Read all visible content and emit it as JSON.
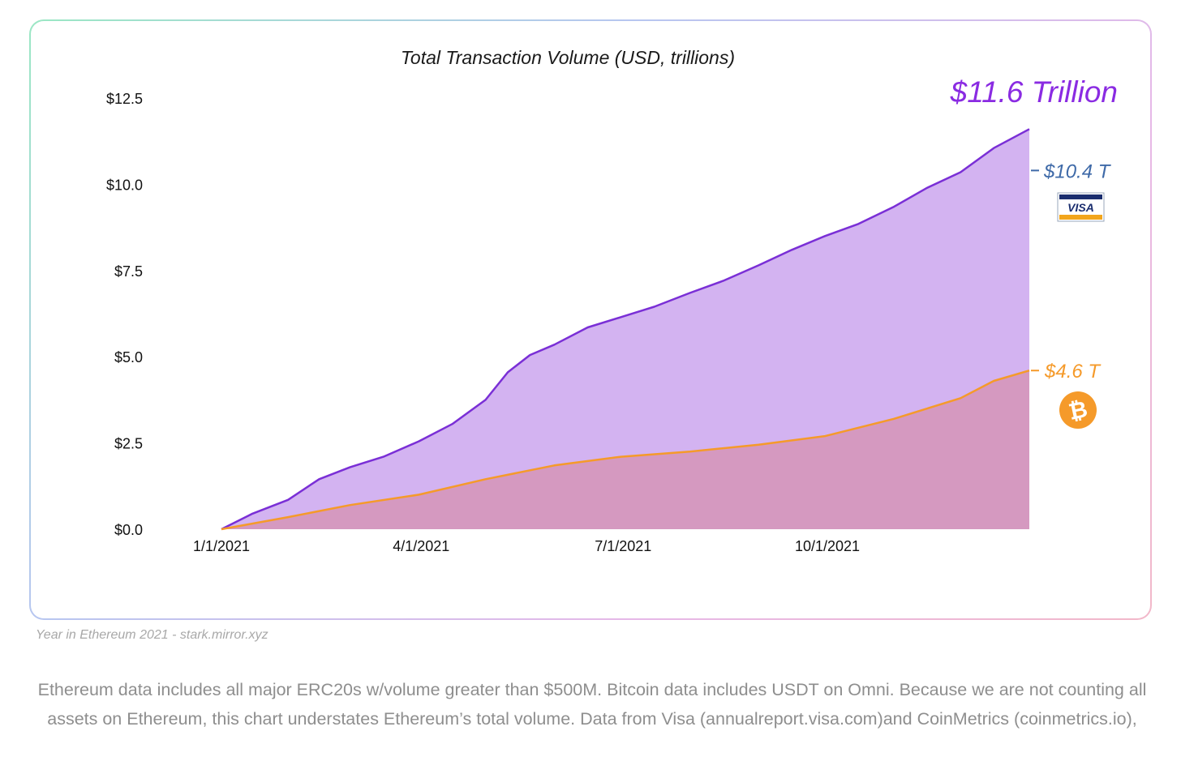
{
  "chart_data": {
    "type": "area",
    "title": "Total Transaction Volume (USD, trillions)",
    "xlabel": "",
    "ylabel": "",
    "ylim": [
      0,
      12.5
    ],
    "xlim": [
      "2021-01-01",
      "2021-12-31"
    ],
    "yticks": [
      "$0.0",
      "$2.5",
      "$5.0",
      "$7.5",
      "$10.0",
      "$12.5"
    ],
    "ytick_values": [
      0,
      2.5,
      5.0,
      7.5,
      10.0,
      12.5
    ],
    "xticks": [
      "1/1/2021",
      "4/1/2021",
      "7/1/2021",
      "10/1/2021"
    ],
    "xtick_dates": [
      "2021-01-01",
      "2021-04-01",
      "2021-07-01",
      "2021-10-01"
    ],
    "grid": false,
    "series": [
      {
        "key": "eth",
        "color": "#7a2fd6",
        "fill": "#d3b3f1",
        "x": [
          "2021-01-01",
          "2021-01-15",
          "2021-01-31",
          "2021-02-14",
          "2021-02-28",
          "2021-03-15",
          "2021-03-31",
          "2021-04-15",
          "2021-04-30",
          "2021-05-10",
          "2021-05-20",
          "2021-05-31",
          "2021-06-15",
          "2021-06-30",
          "2021-07-15",
          "2021-07-31",
          "2021-08-15",
          "2021-08-31",
          "2021-09-15",
          "2021-09-30",
          "2021-10-15",
          "2021-10-31",
          "2021-11-15",
          "2021-11-30",
          "2021-12-15",
          "2021-12-31"
        ],
        "values": [
          0.0,
          0.45,
          0.85,
          1.45,
          1.8,
          2.1,
          2.55,
          3.05,
          3.75,
          4.55,
          5.05,
          5.35,
          5.85,
          6.15,
          6.45,
          6.85,
          7.2,
          7.65,
          8.1,
          8.5,
          8.85,
          9.35,
          9.9,
          10.35,
          11.05,
          11.6
        ]
      },
      {
        "key": "btc",
        "color": "#f59a2a",
        "fill": "#d599c0",
        "x": [
          "2021-01-01",
          "2021-01-31",
          "2021-02-28",
          "2021-03-31",
          "2021-04-30",
          "2021-05-31",
          "2021-06-30",
          "2021-07-31",
          "2021-08-31",
          "2021-09-30",
          "2021-10-31",
          "2021-11-30",
          "2021-12-15",
          "2021-12-31"
        ],
        "values": [
          0.0,
          0.35,
          0.7,
          1.0,
          1.45,
          1.85,
          2.1,
          2.25,
          2.45,
          2.7,
          3.2,
          3.8,
          4.3,
          4.6
        ]
      }
    ],
    "annotations": {
      "total_label": "$11.6 Trillion",
      "total_color": "#8a2be2",
      "visa_label": "$10.4 T",
      "visa_value": 10.4,
      "visa_color": "#3f6aa8",
      "visa_logo_text": "VISA",
      "btc_label": "$4.6 T",
      "btc_value": 4.6,
      "btc_color": "#f59a2a",
      "btc_icon": "bitcoin-icon",
      "btc_symbol": "₿"
    }
  },
  "caption": "Year in Ethereum 2021 - stark.mirror.xyz",
  "note": "Ethereum data includes all major ERC20s w/volume greater than $500M. Bitcoin data includes USDT on Omni. Because we are not counting all assets on Ethereum, this chart understates Ethereum’s total volume. Data from Visa (annualreport.visa.com)and CoinMetrics (coinmetrics.io),"
}
